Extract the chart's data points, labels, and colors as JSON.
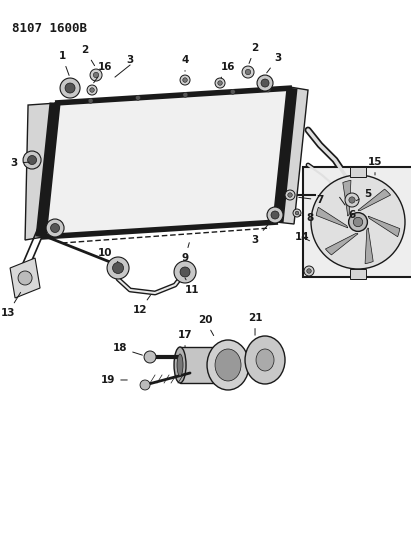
{
  "title": "8107 1600B",
  "bg_color": "#ffffff",
  "lc": "#1a1a1a",
  "title_fontsize": 9,
  "label_fontsize": 7.5
}
